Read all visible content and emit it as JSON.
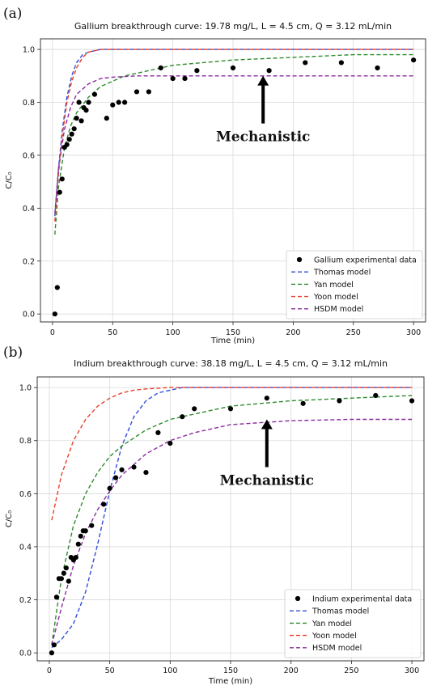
{
  "chart_data": [
    {
      "panel_label": "(a)",
      "type": "scatter",
      "title": "Gallium breakthrough curve: 19.78 mg/L, L = 4.5 cm, Q = 3.12 mL/min",
      "xlabel": "Time (min)",
      "ylabel": "C/C₀",
      "xlim": [
        -10,
        310
      ],
      "ylim": [
        -0.03,
        1.04
      ],
      "xticks": [
        0,
        50,
        100,
        150,
        200,
        250,
        300
      ],
      "yticks": [
        0.0,
        0.2,
        0.4,
        0.6,
        0.8,
        1.0
      ],
      "grid": true,
      "legend_position": "bottom-right",
      "annotation": {
        "text": "Mechanistic",
        "arrow_x": 175,
        "arrow_tip_y": 0.9,
        "arrow_tail_y": 0.72
      },
      "experimental": {
        "name": "Gallium experimental data",
        "color": "#000000",
        "x": [
          2,
          4,
          6,
          8,
          10,
          12,
          14,
          16,
          18,
          20,
          22,
          24,
          26,
          28,
          30,
          35,
          45,
          50,
          55,
          60,
          70,
          80,
          90,
          100,
          110,
          120,
          150,
          180,
          210,
          240,
          270,
          300
        ],
        "y": [
          0.0,
          0.1,
          0.46,
          0.51,
          0.63,
          0.64,
          0.66,
          0.68,
          0.7,
          0.74,
          0.8,
          0.73,
          0.78,
          0.77,
          0.8,
          0.83,
          0.74,
          0.79,
          0.8,
          0.8,
          0.84,
          0.84,
          0.93,
          0.89,
          0.89,
          0.92,
          0.93,
          0.92,
          0.95,
          0.95,
          0.93,
          0.96
        ]
      },
      "models": [
        {
          "name": "Thomas model",
          "color": "#2f4fd8",
          "x": [
            2,
            5,
            8,
            12,
            16,
            20,
            25,
            30,
            40,
            60,
            100,
            300
          ],
          "y": [
            0.37,
            0.55,
            0.69,
            0.82,
            0.9,
            0.95,
            0.98,
            0.99,
            1.0,
            1.0,
            1.0,
            1.0
          ]
        },
        {
          "name": "Yan model",
          "color": "#2e8b2e",
          "x": [
            2,
            5,
            10,
            15,
            20,
            30,
            40,
            60,
            80,
            100,
            150,
            200,
            250,
            300
          ],
          "y": [
            0.3,
            0.48,
            0.63,
            0.71,
            0.76,
            0.82,
            0.86,
            0.9,
            0.92,
            0.94,
            0.96,
            0.97,
            0.98,
            0.98
          ]
        },
        {
          "name": "Yoon model",
          "color": "#e8422b",
          "x": [
            2,
            5,
            8,
            12,
            16,
            20,
            25,
            30,
            40,
            60,
            100,
            300
          ],
          "y": [
            0.35,
            0.53,
            0.67,
            0.8,
            0.88,
            0.93,
            0.97,
            0.99,
            1.0,
            1.0,
            1.0,
            1.0
          ]
        },
        {
          "name": "HSDM model",
          "color": "#8a2c9e",
          "x": [
            2,
            5,
            10,
            15,
            20,
            30,
            40,
            50,
            70,
            100,
            300
          ],
          "y": [
            0.38,
            0.55,
            0.7,
            0.78,
            0.83,
            0.87,
            0.89,
            0.895,
            0.9,
            0.9,
            0.9
          ]
        }
      ]
    },
    {
      "panel_label": "(b)",
      "type": "scatter",
      "title": "Indium breakthrough curve: 38.18 mg/L, L = 4.5 cm, Q = 3.12 mL/min",
      "xlabel": "Time (min)",
      "ylabel": "C/C₀",
      "xlim": [
        -10,
        310
      ],
      "ylim": [
        -0.03,
        1.04
      ],
      "xticks": [
        0,
        50,
        100,
        150,
        200,
        250,
        300
      ],
      "yticks": [
        0.0,
        0.2,
        0.4,
        0.6,
        0.8,
        1.0
      ],
      "grid": true,
      "legend_position": "bottom-right",
      "annotation": {
        "text": "Mechanistic",
        "arrow_x": 180,
        "arrow_tip_y": 0.88,
        "arrow_tail_y": 0.7
      },
      "experimental": {
        "name": "Indium experimental data",
        "color": "#000000",
        "x": [
          2,
          4,
          6,
          8,
          10,
          12,
          14,
          16,
          18,
          20,
          22,
          24,
          26,
          28,
          30,
          35,
          45,
          50,
          55,
          60,
          70,
          80,
          90,
          100,
          110,
          120,
          150,
          180,
          210,
          240,
          270,
          300
        ],
        "y": [
          0.0,
          0.03,
          0.21,
          0.28,
          0.28,
          0.3,
          0.32,
          0.27,
          0.36,
          0.35,
          0.36,
          0.41,
          0.44,
          0.46,
          0.46,
          0.48,
          0.56,
          0.62,
          0.66,
          0.69,
          0.7,
          0.68,
          0.83,
          0.79,
          0.89,
          0.92,
          0.92,
          0.96,
          0.94,
          0.95,
          0.97,
          0.95
        ]
      },
      "models": [
        {
          "name": "Thomas model",
          "color": "#2f4fd8",
          "x": [
            2,
            10,
            20,
            30,
            40,
            50,
            60,
            70,
            80,
            90,
            100,
            110,
            120,
            140,
            300
          ],
          "y": [
            0.02,
            0.05,
            0.11,
            0.23,
            0.41,
            0.61,
            0.78,
            0.89,
            0.95,
            0.98,
            0.99,
            1.0,
            1.0,
            1.0,
            1.0
          ]
        },
        {
          "name": "Yan model",
          "color": "#2e8b2e",
          "x": [
            2,
            10,
            20,
            30,
            40,
            50,
            60,
            80,
            100,
            120,
            150,
            200,
            250,
            300
          ],
          "y": [
            0.03,
            0.28,
            0.48,
            0.6,
            0.68,
            0.74,
            0.78,
            0.84,
            0.88,
            0.9,
            0.93,
            0.95,
            0.96,
            0.97
          ]
        },
        {
          "name": "Yoon model",
          "color": "#e8422b",
          "x": [
            2,
            10,
            20,
            30,
            40,
            50,
            60,
            70,
            80,
            100,
            120,
            300
          ],
          "y": [
            0.5,
            0.67,
            0.8,
            0.88,
            0.93,
            0.96,
            0.98,
            0.99,
            0.995,
            1.0,
            1.0,
            1.0
          ]
        },
        {
          "name": "HSDM model",
          "color": "#8a2c9e",
          "x": [
            2,
            10,
            20,
            30,
            40,
            50,
            60,
            80,
            100,
            120,
            150,
            200,
            250,
            300
          ],
          "y": [
            0.03,
            0.17,
            0.33,
            0.45,
            0.54,
            0.61,
            0.67,
            0.75,
            0.8,
            0.83,
            0.86,
            0.875,
            0.88,
            0.88
          ]
        }
      ]
    }
  ]
}
